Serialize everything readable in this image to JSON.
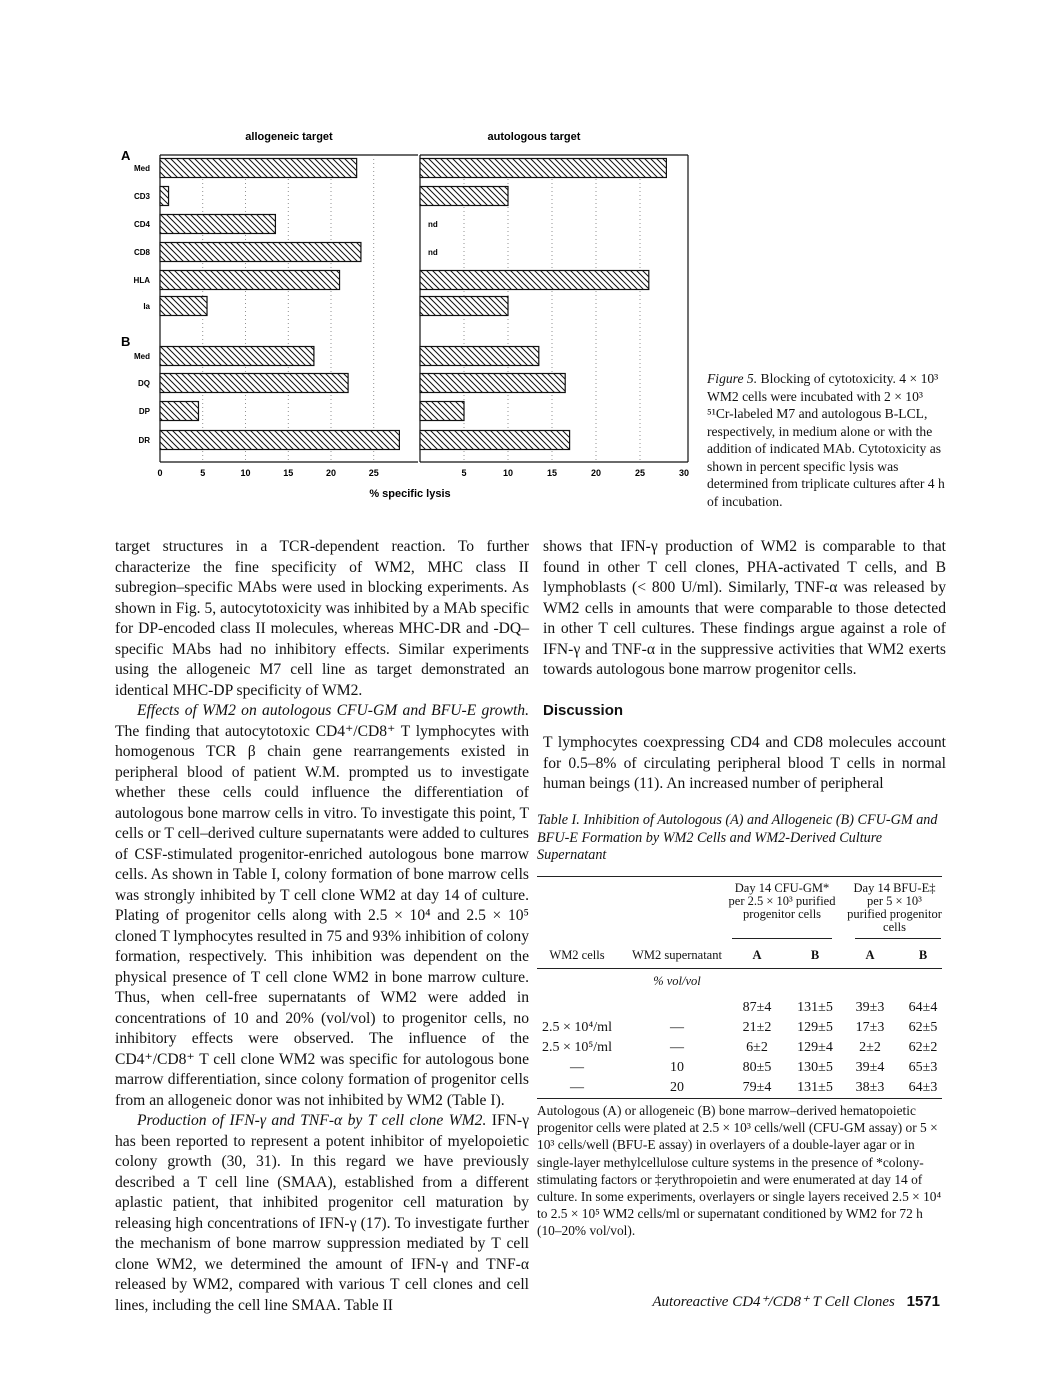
{
  "chart_data": {
    "type": "bar",
    "orientation": "horizontal",
    "panels": [
      {
        "title": "allogeneic target",
        "xlim": [
          0,
          30
        ],
        "xticks": [
          "0",
          "5",
          "10",
          "15",
          "20",
          "25"
        ],
        "groups": [
          {
            "label": "A",
            "categories": [
              "Med",
              "CD3",
              "CD4",
              "CD8",
              "HLA",
              "Ia"
            ],
            "values": [
              23,
              1,
              13.5,
              23.5,
              21,
              5.5
            ]
          },
          {
            "label": "B",
            "categories": [
              "Med",
              "DQ",
              "DP",
              "DR"
            ],
            "values": [
              18,
              22,
              4.5,
              28
            ]
          }
        ]
      },
      {
        "title": "autologous target",
        "xlim": [
          0,
          30
        ],
        "xticks": [
          "5",
          "10",
          "15",
          "20",
          "25",
          "30"
        ],
        "groups": [
          {
            "label": "A",
            "categories": [
              "Med",
              "CD3",
              "CD4",
              "CD8",
              "HLA",
              "Ia"
            ],
            "values": [
              28,
              10,
              "nd",
              "nd",
              26,
              10
            ]
          },
          {
            "label": "B",
            "categories": [
              "Med",
              "DQ",
              "DP",
              "DR"
            ],
            "values": [
              13.5,
              16.5,
              5,
              17
            ]
          }
        ]
      }
    ],
    "xlabel": "% specific lysis",
    "nd_label": "nd",
    "grid": "vertical dotted",
    "fill": "diagonal hatch"
  },
  "figure_caption": {
    "label": "Figure 5.",
    "text": "Blocking of cytotoxicity. 4 × 10³ WM2 cells were incubated with 2 × 10³ ⁵¹Cr-labeled M7 and autologous B-LCL, respectively, in medium alone or with the addition of indicated MAb. Cytotoxicity as shown in percent specific lysis was determined from triplicate cultures after 4 h of incubation."
  },
  "left_column": {
    "p1": "target structures in a TCR-dependent reaction. To further characterize the fine specificity of WM2, MHC class II subregion–specific MAbs were used in blocking experiments. As shown in Fig. 5, autocytotoxicity was inhibited by a MAb specific for DP-encoded class II molecules, whereas MHC-DR and -DQ–specific MAbs had no inhibitory effects. Similar experiments using the allogeneic M7 cell line as target demonstrated an identical MHC-DP specificity of WM2.",
    "p2_heading": "Effects of WM2 on autologous CFU-GM and BFU-E growth.",
    "p2": " The finding that autocytotoxic CD4⁺/CD8⁺ T lymphocytes with homogenous TCR β chain gene rearrangements existed in peripheral blood of patient W.M. prompted us to investigate whether these cells could influence the differentiation of autologous bone marrow cells in vitro. To investigate this point, T cells or T cell–derived culture supernatants were added to cultures of CSF-stimulated progenitor-enriched autologous bone marrow cells. As shown in Table I, colony formation of bone marrow cells was strongly inhibited by T cell clone WM2 at day 14 of culture. Plating of progenitor cells along with 2.5 × 10⁴ and 2.5 × 10⁵ cloned T lymphocytes resulted in 75 and 93% inhibition of colony formation, respectively. This inhibition was dependent on the physical presence of T cell clone WM2 in bone marrow culture. Thus, when cell-free supernatants of WM2 were added in concentrations of 10 and 20% (vol/vol) to progenitor cells, no inhibitory effects were observed. The influence of the CD4⁺/CD8⁺ T cell clone WM2 was specific for autologous bone marrow differentiation, since colony formation of progenitor cells from an allogeneic donor was not inhibited by WM2 (Table I).",
    "p3_heading": "Production of IFN-γ and TNF-α by T cell clone WM2.",
    "p3": " IFN-γ has been reported to represent a potent inhibitor of myelopoietic colony growth (30, 31). In this regard we have previously described a T cell line (SMAA), established from a different aplastic patient, that inhibited progenitor cell maturation by releasing high concentrations of IFN-γ (17). To investigate further the mechanism of bone marrow suppression mediated by T cell clone WM2, we determined the amount of IFN-γ and TNF-α released by WM2, compared with various T cell clones and cell lines, including the cell line SMAA. Table II"
  },
  "right_column": {
    "p1": "shows that IFN-γ production of WM2 is comparable to that found in other T cell clones, PHA-activated T cells, and B lymphoblasts (< 800 U/ml). Similarly, TNF-α was released by WM2 cells in amounts that were comparable to those detected in other T cell cultures. These findings argue against a role of IFN-γ and TNF-α in the suppressive activities that WM2 exerts towards autologous bone marrow progenitor cells.",
    "discussion_heading": "Discussion",
    "p2": "T lymphocytes coexpressing CD4 and CD8 molecules account for 0.5–8% of circulating peripheral blood T cells in normal human beings (11). An increased number of peripheral"
  },
  "table": {
    "title": "Table I. Inhibition of Autologous (A) and Allogeneic (B) CFU-GM and BFU-E Formation by WM2 Cells and WM2-Derived Culture Supernatant",
    "group_headers": [
      "Day 14 CFU-GM* per 2.5 × 10³ purified progenitor cells",
      "Day 14 BFU-E‡ per 5 × 10³ purified progenitor cells"
    ],
    "columns": [
      "WM2 cells",
      "WM2 supernatant",
      "A",
      "B",
      "A",
      "B"
    ],
    "units_row": "% vol/vol",
    "rows": [
      [
        "",
        "",
        "87±4",
        "131±5",
        "39±3",
        "64±4"
      ],
      [
        "2.5 × 10⁴/ml",
        "—",
        "21±2",
        "129±5",
        "17±3",
        "62±5"
      ],
      [
        "2.5 × 10⁵/ml",
        "—",
        "6±2",
        "129±4",
        "2±2",
        "62±2"
      ],
      [
        "—",
        "10",
        "80±5",
        "130±5",
        "39±4",
        "65±3"
      ],
      [
        "—",
        "20",
        "79±4",
        "131±5",
        "38±3",
        "64±3"
      ]
    ],
    "note": "Autologous (A) or allogeneic (B) bone marrow–derived hematopoietic progenitor cells were plated at 2.5 × 10³ cells/well (CFU-GM assay) or 5 × 10³ cells/well (BFU-E assay) in overlayers of a double-layer agar or in single-layer methylcellulose culture systems in the presence of *colony-stimulating factors or ‡erythropoietin and were enumerated at day 14 of culture. In some experiments, overlayers or single layers received 2.5 × 10⁴ to 2.5 × 10⁵ WM2 cells/ml or supernatant conditioned by WM2 for 72 h (10–20% vol/vol)."
  },
  "footer": {
    "running_title": "Autoreactive CD4⁺/CD8⁺ T Cell Clones",
    "page_number": "1571"
  }
}
